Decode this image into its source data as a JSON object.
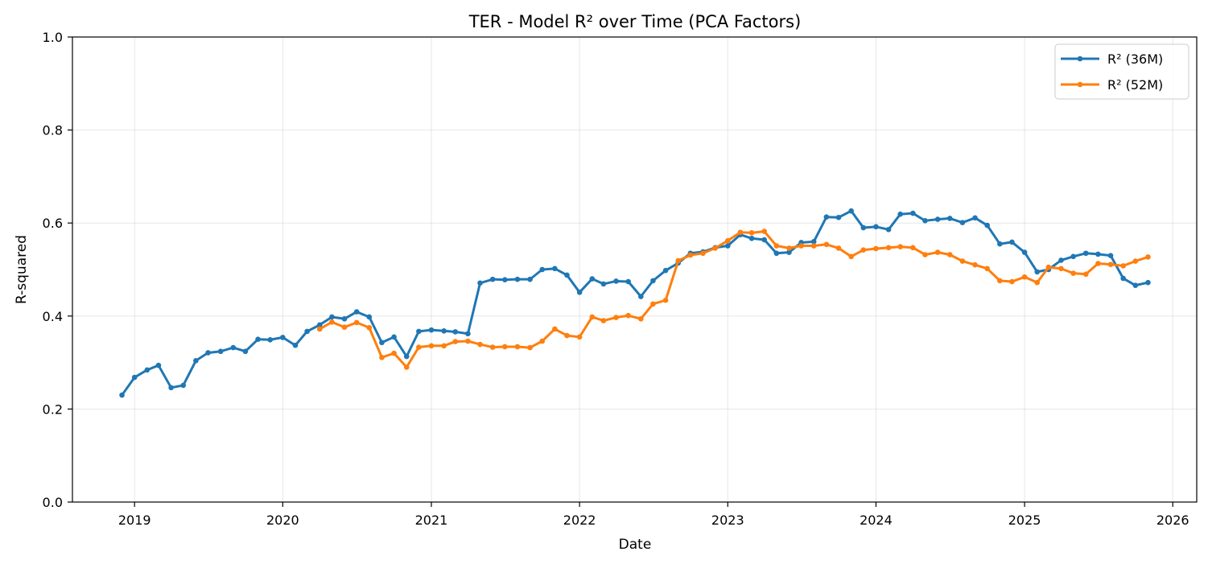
{
  "chart_data": {
    "type": "line",
    "title": "TER - Model R² over Time (PCA Factors)",
    "xlabel": "Date",
    "ylabel": "R-squared",
    "ylim": [
      0,
      1.0
    ],
    "yticks": [
      0.0,
      0.2,
      0.4,
      0.6,
      0.8,
      1.0
    ],
    "ytick_labels": [
      "0.0",
      "0.2",
      "0.4",
      "0.6",
      "0.8",
      "1.0"
    ],
    "xlim": [
      "2018-08-01",
      "2026-03-01"
    ],
    "xticks": [
      "2019-01-01",
      "2020-01-01",
      "2021-01-01",
      "2022-01-01",
      "2023-01-01",
      "2024-01-01",
      "2025-01-01",
      "2026-01-01"
    ],
    "xtick_labels": [
      "2019",
      "2020",
      "2021",
      "2022",
      "2023",
      "2024",
      "2025",
      "2026"
    ],
    "grid": true,
    "legend_position": "top-right",
    "series": [
      {
        "name": "R² (36M)",
        "color": "#1f77b4",
        "points": [
          [
            "2018-12-01",
            0.23
          ],
          [
            "2019-01-01",
            0.268
          ],
          [
            "2019-02-01",
            0.284
          ],
          [
            "2019-03-01",
            0.294
          ],
          [
            "2019-04-01",
            0.246
          ],
          [
            "2019-05-01",
            0.251
          ],
          [
            "2019-06-01",
            0.304
          ],
          [
            "2019-07-01",
            0.321
          ],
          [
            "2019-08-01",
            0.324
          ],
          [
            "2019-09-01",
            0.332
          ],
          [
            "2019-10-01",
            0.324
          ],
          [
            "2019-11-01",
            0.35
          ],
          [
            "2019-12-01",
            0.349
          ],
          [
            "2020-01-01",
            0.354
          ],
          [
            "2020-02-01",
            0.337
          ],
          [
            "2020-03-01",
            0.367
          ],
          [
            "2020-04-01",
            0.381
          ],
          [
            "2020-05-01",
            0.398
          ],
          [
            "2020-06-01",
            0.394
          ],
          [
            "2020-07-01",
            0.409
          ],
          [
            "2020-08-01",
            0.398
          ],
          [
            "2020-09-01",
            0.343
          ],
          [
            "2020-10-01",
            0.355
          ],
          [
            "2020-11-01",
            0.313
          ],
          [
            "2020-12-01",
            0.367
          ],
          [
            "2021-01-01",
            0.37
          ],
          [
            "2021-02-01",
            0.368
          ],
          [
            "2021-03-01",
            0.366
          ],
          [
            "2021-04-01",
            0.362
          ],
          [
            "2021-05-01",
            0.471
          ],
          [
            "2021-06-01",
            0.479
          ],
          [
            "2021-07-01",
            0.478
          ],
          [
            "2021-08-01",
            0.479
          ],
          [
            "2021-09-01",
            0.479
          ],
          [
            "2021-10-01",
            0.5
          ],
          [
            "2021-11-01",
            0.502
          ],
          [
            "2021-12-01",
            0.488
          ],
          [
            "2022-01-01",
            0.451
          ],
          [
            "2022-02-01",
            0.48
          ],
          [
            "2022-03-01",
            0.469
          ],
          [
            "2022-04-01",
            0.475
          ],
          [
            "2022-05-01",
            0.474
          ],
          [
            "2022-06-01",
            0.442
          ],
          [
            "2022-07-01",
            0.476
          ],
          [
            "2022-08-01",
            0.498
          ],
          [
            "2022-09-01",
            0.514
          ],
          [
            "2022-10-01",
            0.535
          ],
          [
            "2022-11-01",
            0.538
          ],
          [
            "2022-12-01",
            0.547
          ],
          [
            "2023-01-01",
            0.551
          ],
          [
            "2023-02-01",
            0.575
          ],
          [
            "2023-03-01",
            0.567
          ],
          [
            "2023-04-01",
            0.564
          ],
          [
            "2023-05-01",
            0.535
          ],
          [
            "2023-06-01",
            0.537
          ],
          [
            "2023-07-01",
            0.558
          ],
          [
            "2023-08-01",
            0.56
          ],
          [
            "2023-09-01",
            0.613
          ],
          [
            "2023-10-01",
            0.612
          ],
          [
            "2023-11-01",
            0.626
          ],
          [
            "2023-12-01",
            0.59
          ],
          [
            "2024-01-01",
            0.592
          ],
          [
            "2024-02-01",
            0.586
          ],
          [
            "2024-03-01",
            0.619
          ],
          [
            "2024-04-01",
            0.621
          ],
          [
            "2024-05-01",
            0.605
          ],
          [
            "2024-06-01",
            0.608
          ],
          [
            "2024-07-01",
            0.61
          ],
          [
            "2024-08-01",
            0.601
          ],
          [
            "2024-09-01",
            0.611
          ],
          [
            "2024-10-01",
            0.595
          ],
          [
            "2024-11-01",
            0.555
          ],
          [
            "2024-12-01",
            0.559
          ],
          [
            "2025-01-01",
            0.537
          ],
          [
            "2025-02-01",
            0.495
          ],
          [
            "2025-03-01",
            0.5
          ],
          [
            "2025-04-01",
            0.52
          ],
          [
            "2025-05-01",
            0.528
          ],
          [
            "2025-06-01",
            0.535
          ],
          [
            "2025-07-01",
            0.533
          ],
          [
            "2025-08-01",
            0.53
          ],
          [
            "2025-09-01",
            0.481
          ],
          [
            "2025-10-01",
            0.466
          ],
          [
            "2025-11-01",
            0.472
          ]
        ]
      },
      {
        "name": "R² (52M)",
        "color": "#ff7f0e",
        "points": [
          [
            "2020-04-01",
            0.372
          ],
          [
            "2020-05-01",
            0.387
          ],
          [
            "2020-06-01",
            0.376
          ],
          [
            "2020-07-01",
            0.386
          ],
          [
            "2020-08-01",
            0.375
          ],
          [
            "2020-09-01",
            0.311
          ],
          [
            "2020-10-01",
            0.32
          ],
          [
            "2020-11-01",
            0.29
          ],
          [
            "2020-12-01",
            0.333
          ],
          [
            "2021-01-01",
            0.336
          ],
          [
            "2021-02-01",
            0.336
          ],
          [
            "2021-03-01",
            0.345
          ],
          [
            "2021-04-01",
            0.346
          ],
          [
            "2021-05-01",
            0.339
          ],
          [
            "2021-06-01",
            0.333
          ],
          [
            "2021-07-01",
            0.334
          ],
          [
            "2021-08-01",
            0.334
          ],
          [
            "2021-09-01",
            0.332
          ],
          [
            "2021-10-01",
            0.346
          ],
          [
            "2021-11-01",
            0.372
          ],
          [
            "2021-12-01",
            0.358
          ],
          [
            "2022-01-01",
            0.355
          ],
          [
            "2022-02-01",
            0.398
          ],
          [
            "2022-03-01",
            0.39
          ],
          [
            "2022-04-01",
            0.397
          ],
          [
            "2022-05-01",
            0.401
          ],
          [
            "2022-06-01",
            0.394
          ],
          [
            "2022-07-01",
            0.426
          ],
          [
            "2022-08-01",
            0.434
          ],
          [
            "2022-09-01",
            0.519
          ],
          [
            "2022-10-01",
            0.531
          ],
          [
            "2022-11-01",
            0.535
          ],
          [
            "2022-12-01",
            0.546
          ],
          [
            "2023-01-01",
            0.562
          ],
          [
            "2023-02-01",
            0.58
          ],
          [
            "2023-03-01",
            0.579
          ],
          [
            "2023-04-01",
            0.582
          ],
          [
            "2023-05-01",
            0.551
          ],
          [
            "2023-06-01",
            0.546
          ],
          [
            "2023-07-01",
            0.551
          ],
          [
            "2023-08-01",
            0.551
          ],
          [
            "2023-09-01",
            0.554
          ],
          [
            "2023-10-01",
            0.546
          ],
          [
            "2023-11-01",
            0.528
          ],
          [
            "2023-12-01",
            0.542
          ],
          [
            "2024-01-01",
            0.545
          ],
          [
            "2024-02-01",
            0.547
          ],
          [
            "2024-03-01",
            0.549
          ],
          [
            "2024-04-01",
            0.547
          ],
          [
            "2024-05-01",
            0.532
          ],
          [
            "2024-06-01",
            0.537
          ],
          [
            "2024-07-01",
            0.532
          ],
          [
            "2024-08-01",
            0.518
          ],
          [
            "2024-09-01",
            0.51
          ],
          [
            "2024-10-01",
            0.502
          ],
          [
            "2024-11-01",
            0.476
          ],
          [
            "2024-12-01",
            0.474
          ],
          [
            "2025-01-01",
            0.484
          ],
          [
            "2025-02-01",
            0.472
          ],
          [
            "2025-03-01",
            0.505
          ],
          [
            "2025-04-01",
            0.502
          ],
          [
            "2025-05-01",
            0.492
          ],
          [
            "2025-06-01",
            0.49
          ],
          [
            "2025-07-01",
            0.513
          ],
          [
            "2025-08-01",
            0.511
          ],
          [
            "2025-09-01",
            0.508
          ],
          [
            "2025-10-01",
            0.518
          ],
          [
            "2025-11-01",
            0.527
          ]
        ]
      }
    ]
  }
}
